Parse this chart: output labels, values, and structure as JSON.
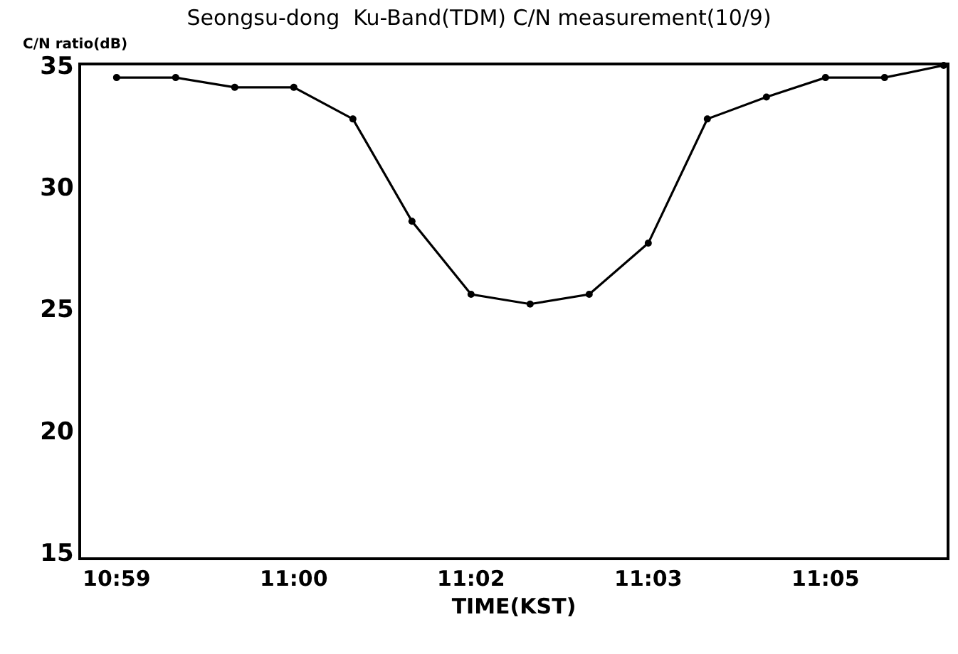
{
  "chart_data": {
    "type": "line",
    "title": "Seongsu-dong  Ku-Band(TDM) C/N measurement(10/9)",
    "xlabel": "TIME(KST)",
    "ylabel": "C/N ratio(dB)",
    "categories": [
      "10:59",
      null,
      null,
      "11:00",
      null,
      null,
      "11:02",
      null,
      null,
      "11:03",
      null,
      null,
      "11:05",
      null,
      null
    ],
    "series": [
      {
        "color": "#000000",
        "values": [
          34.5,
          34.5,
          34.1,
          34.1,
          32.8,
          28.6,
          25.6,
          25.2,
          25.6,
          27.7,
          32.8,
          33.7,
          34.5,
          34.5,
          35
        ]
      }
    ],
    "ylim": [
      14.8,
      35
    ],
    "yticks": [
      15,
      20,
      25,
      30,
      35
    ],
    "legend": false,
    "marker": "circle",
    "line_style": "solid"
  }
}
